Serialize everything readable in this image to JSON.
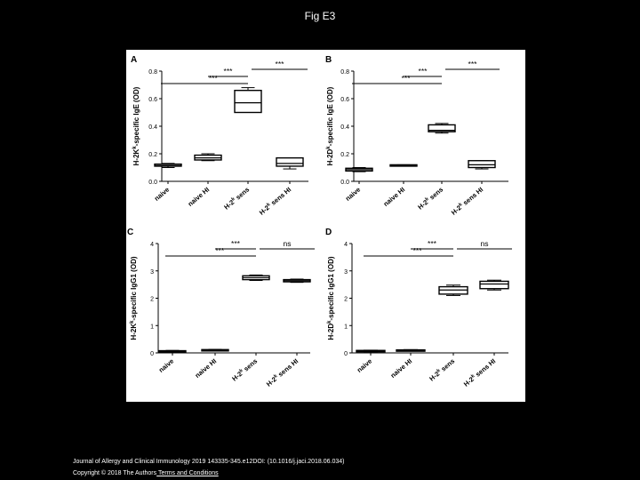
{
  "page": {
    "title": "Fig E3"
  },
  "footer": {
    "citation": "Journal of Allergy and Clinical Immunology 2019 143335-345.e12DOI: (10.1016/j.jaci.2018.06.034)",
    "copyright": "Copyright © 2018 The Authors",
    "link": " Terms and Conditions"
  },
  "chart_data": [
    {
      "panel": "A",
      "type": "boxplot",
      "ylabel": "H-2Kk-specific IgE (OD)",
      "ylabel_parts": [
        "H-2K",
        "k",
        "-specific IgE (OD)"
      ],
      "ylim": [
        0,
        0.8
      ],
      "yticks": [
        "0.0",
        "0.2",
        "0.4",
        "0.6",
        "0.8"
      ],
      "categories": [
        "naive",
        "naive HI",
        "H-2k sens",
        "H-2k sens HI"
      ],
      "boxes": [
        {
          "min": 0.1,
          "q1": 0.11,
          "median": 0.115,
          "q3": 0.125,
          "max": 0.13
        },
        {
          "min": 0.15,
          "q1": 0.155,
          "median": 0.17,
          "q3": 0.19,
          "max": 0.2
        },
        {
          "min": 0.5,
          "q1": 0.5,
          "median": 0.57,
          "q3": 0.66,
          "max": 0.68
        },
        {
          "min": 0.09,
          "q1": 0.11,
          "median": 0.13,
          "q3": 0.17,
          "max": 0.17
        }
      ],
      "brackets": [
        {
          "from": 0,
          "to": 2,
          "label": "***"
        },
        {
          "from": 1,
          "to": 2,
          "label": "***"
        },
        {
          "from": 2,
          "to": 3,
          "label": "***"
        }
      ]
    },
    {
      "panel": "B",
      "type": "boxplot",
      "ylabel": "H-2Dk-specific IgE (OD)",
      "ylabel_parts": [
        "H-2D",
        "k",
        "-specific IgE (OD)"
      ],
      "ylim": [
        0,
        0.8
      ],
      "yticks": [
        "0.0",
        "0.2",
        "0.4",
        "0.6",
        "0.8"
      ],
      "categories": [
        "naive",
        "naive HI",
        "H-2k sens",
        "H-2k sens HI"
      ],
      "boxes": [
        {
          "min": 0.07,
          "q1": 0.075,
          "median": 0.085,
          "q3": 0.095,
          "max": 0.1
        },
        {
          "min": 0.11,
          "q1": 0.11,
          "median": 0.115,
          "q3": 0.12,
          "max": 0.12
        },
        {
          "min": 0.35,
          "q1": 0.36,
          "median": 0.37,
          "q3": 0.41,
          "max": 0.42
        },
        {
          "min": 0.09,
          "q1": 0.1,
          "median": 0.12,
          "q3": 0.15,
          "max": 0.15
        }
      ],
      "brackets": [
        {
          "from": 0,
          "to": 2,
          "label": "***"
        },
        {
          "from": 1,
          "to": 2,
          "label": "***"
        },
        {
          "from": 2,
          "to": 3,
          "label": "***"
        }
      ]
    },
    {
      "panel": "C",
      "type": "boxplot",
      "ylabel": "H-2Kk-specific IgG1 (OD)",
      "ylabel_parts": [
        "H-2K",
        "k",
        "-specific IgG1 (OD)"
      ],
      "ylim": [
        0,
        4
      ],
      "yticks": [
        "0",
        "1",
        "2",
        "3",
        "4"
      ],
      "categories": [
        "naive",
        "naive HI",
        "H-2k sens",
        "H-2k sens HI"
      ],
      "boxes": [
        {
          "min": 0.05,
          "q1": 0.06,
          "median": 0.07,
          "q3": 0.08,
          "max": 0.09
        },
        {
          "min": 0.07,
          "q1": 0.08,
          "median": 0.1,
          "q3": 0.12,
          "max": 0.13
        },
        {
          "min": 2.65,
          "q1": 2.68,
          "median": 2.75,
          "q3": 2.82,
          "max": 2.85
        },
        {
          "min": 2.58,
          "q1": 2.6,
          "median": 2.64,
          "q3": 2.68,
          "max": 2.7
        }
      ],
      "brackets": [
        {
          "from": 0,
          "to": 2,
          "label": "***"
        },
        {
          "from": 1,
          "to": 2,
          "label": "***"
        },
        {
          "from": 2,
          "to": 3,
          "label": "ns"
        }
      ]
    },
    {
      "panel": "D",
      "type": "boxplot",
      "ylabel": "H-2Dk-specific IgG1 (OD)",
      "ylabel_parts": [
        "H-2D",
        "k",
        "-specific IgG1 (OD)"
      ],
      "ylim": [
        0,
        4
      ],
      "yticks": [
        "0",
        "1",
        "2",
        "3",
        "4"
      ],
      "categories": [
        "naive",
        "naive HI",
        "H-2k sens",
        "H-2k sens HI"
      ],
      "boxes": [
        {
          "min": 0.04,
          "q1": 0.05,
          "median": 0.07,
          "q3": 0.09,
          "max": 0.1
        },
        {
          "min": 0.07,
          "q1": 0.08,
          "median": 0.09,
          "q3": 0.11,
          "max": 0.12
        },
        {
          "min": 2.1,
          "q1": 2.15,
          "median": 2.3,
          "q3": 2.42,
          "max": 2.48
        },
        {
          "min": 2.3,
          "q1": 2.35,
          "median": 2.52,
          "q3": 2.62,
          "max": 2.66
        }
      ],
      "brackets": [
        {
          "from": 0,
          "to": 2,
          "label": "***"
        },
        {
          "from": 1,
          "to": 2,
          "label": "***"
        },
        {
          "from": 2,
          "to": 3,
          "label": "ns"
        }
      ]
    }
  ]
}
